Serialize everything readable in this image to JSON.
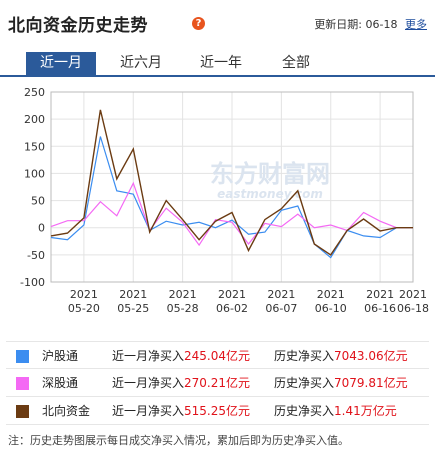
{
  "header": {
    "title": "北向资金历史走势",
    "update_label": "更新日期:",
    "update_date": "06-18",
    "more_link": "更多"
  },
  "tabs": [
    {
      "label": "近一月",
      "active": true
    },
    {
      "label": "近六月",
      "active": false
    },
    {
      "label": "近一年",
      "active": false
    },
    {
      "label": "全部",
      "active": false
    }
  ],
  "watermark": {
    "cn": "东方财富网",
    "en": "eastmoney.com"
  },
  "chart_data": {
    "type": "line",
    "x": [
      "05-18",
      "05-19",
      "05-20",
      "05-21",
      "05-24",
      "05-25",
      "05-26",
      "05-27",
      "05-28",
      "05-31",
      "06-01",
      "06-02",
      "06-03",
      "06-04",
      "06-07",
      "06-08",
      "06-09",
      "06-10",
      "06-11",
      "06-15",
      "06-16",
      "06-17",
      "06-18"
    ],
    "x_tick_labels": [
      {
        "year": "2021",
        "date": "05-20"
      },
      {
        "year": "2021",
        "date": "05-25"
      },
      {
        "year": "2021",
        "date": "05-28"
      },
      {
        "year": "2021",
        "date": "06-02"
      },
      {
        "year": "2021",
        "date": "06-07"
      },
      {
        "year": "2021",
        "date": "06-10"
      },
      {
        "year": "2021",
        "date": "06-16"
      },
      {
        "year": "2021",
        "date": "06-18"
      }
    ],
    "y_ticks": [
      -100,
      -50,
      0,
      50,
      100,
      150,
      200,
      250
    ],
    "ylim": [
      -100,
      250
    ],
    "grid": true,
    "series": [
      {
        "name": "沪股通",
        "color": "#3b8df0",
        "values": [
          -18,
          -22,
          5,
          168,
          68,
          62,
          -5,
          12,
          5,
          10,
          0,
          14,
          -12,
          -8,
          32,
          40,
          -30,
          -55,
          -5,
          -15,
          -18,
          0,
          0
        ]
      },
      {
        "name": "深股通",
        "color": "#f469f4",
        "values": [
          2,
          13,
          13,
          48,
          22,
          82,
          -5,
          36,
          10,
          -32,
          15,
          10,
          -30,
          8,
          2,
          25,
          0,
          5,
          -5,
          28,
          12,
          0,
          0
        ]
      },
      {
        "name": "北向资金",
        "color": "#6b3b12",
        "values": [
          -15,
          -10,
          18,
          217,
          90,
          145,
          -8,
          50,
          15,
          -22,
          12,
          28,
          -42,
          15,
          35,
          68,
          -30,
          -50,
          -5,
          16,
          -6,
          0,
          0
        ]
      }
    ]
  },
  "legend": [
    {
      "name": "沪股通",
      "color": "#3b8df0",
      "month_label": "近一月净买入",
      "month_value": "245.04亿元",
      "total_label": "历史净买入",
      "total_value": "7043.06亿元"
    },
    {
      "name": "深股通",
      "color": "#f469f4",
      "month_label": "近一月净买入",
      "month_value": "270.21亿元",
      "total_label": "历史净买入",
      "total_value": "7079.81亿元"
    },
    {
      "name": "北向资金",
      "color": "#6b3b12",
      "month_label": "近一月净买入",
      "month_value": "515.25亿元",
      "total_label": "历史净买入",
      "total_value": "1.41万亿元"
    }
  ],
  "note": "注：历史走势图展示每日成交净买入情况，累加后即为历史净买入值。"
}
